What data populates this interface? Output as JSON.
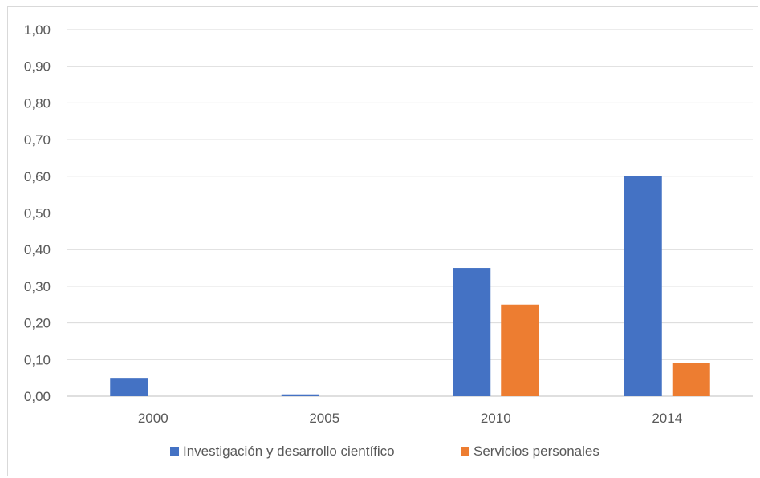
{
  "chart_data": {
    "type": "bar",
    "categories": [
      "2000",
      "2005",
      "2010",
      "2014"
    ],
    "series": [
      {
        "name": "Investigación y desarrollo científico",
        "color": "#4472c4",
        "values": [
          0.05,
          0.005,
          0.35,
          0.6
        ]
      },
      {
        "name": "Servicios personales",
        "color": "#ed7d31",
        "values": [
          0,
          0,
          0.25,
          0.09
        ]
      }
    ],
    "y_ticks": [
      "0,00",
      "0,10",
      "0,20",
      "0,30",
      "0,40",
      "0,50",
      "0,60",
      "0,70",
      "0,80",
      "0,90",
      "1,00"
    ],
    "ylim": [
      0,
      1.0
    ],
    "grid": true,
    "legend_position": "bottom",
    "title": "",
    "xlabel": "",
    "ylabel": ""
  }
}
